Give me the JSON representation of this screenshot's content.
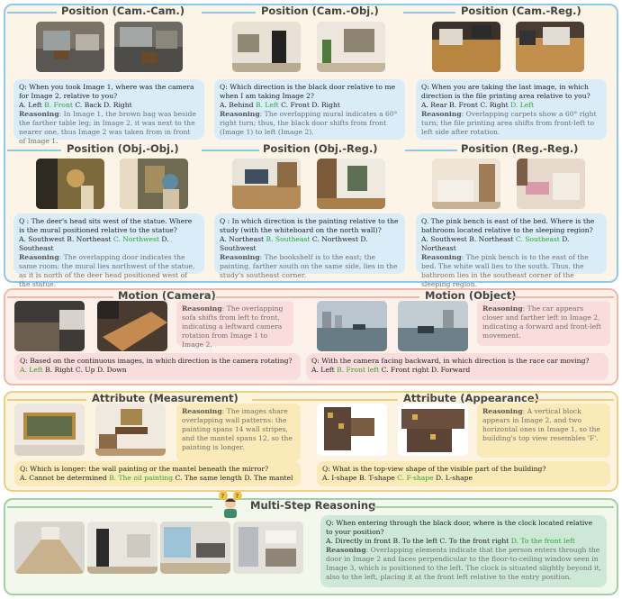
{
  "sections": {
    "position_pairs": {
      "colors": {
        "border": "#8ec9ea",
        "card": "#d9ecf8"
      }
    },
    "motion": {
      "colors": {
        "border": "#f0b8ad",
        "card": "#f9dcdc"
      }
    },
    "attribute": {
      "colors": {
        "border": "#f1cf82",
        "card": "#f9eab7"
      }
    },
    "multistep": {
      "colors": {
        "border": "#9fd2a4",
        "card": "#cde8d7"
      }
    }
  },
  "answer_color": "#2ca42c",
  "reasoning_label": "Reasoning",
  "position": {
    "cam_cam": {
      "title": "Position (Cam.-Cam.)",
      "question": "Q: When you took Image 1, where was the camera for Image 2, relative to you?",
      "opt_a": "A. Left ",
      "opt_b": "B. Front",
      "opt_rest": " C. Back  D. Right",
      "reasoning": "In Image 1, the brown bag was beside the farther table leg; in Image 2, it was next to the nearer one, thus Image 2 was taken from in front of Image 1."
    },
    "cam_obj": {
      "title": "Position (Cam.-Obj.)",
      "question": "Q: Which direction is the black door relative to me when I am taking Image 2?",
      "opt_a": "A. Behind ",
      "opt_b": "B. Left",
      "opt_rest": " C. Front  D. Right",
      "reasoning": "The overlapping mural indicates a 60° right turn; thus, the black door shifts from front (Image 1) to left (Image 2)."
    },
    "cam_reg": {
      "title": "Position (Cam.-Reg.)",
      "question": "Q: When you are taking the last image, in which direction is the file printing area relative to you?",
      "opt_pre": "A. Rear  B. Front  C. Right  ",
      "opt_d": "D. Left",
      "reasoning": "Overlapping carpets show a 60° right turn; the file printing area shifts from front-left to left side after rotation."
    },
    "obj_obj": {
      "title": "Position (Obj.-Obj.)",
      "question": "Q : The deer's head sits west of the statue. Where is the mural positioned relative to the statue?",
      "opt_pre": "A. Southwest  B. Northeast  ",
      "opt_c": "C. Northwest",
      "opt_rest": "  D. Southeast",
      "reasoning": "The overlapping door indicates the same room; the mural lies northwest of the statue, as it is north of the deer head positioned west of the statue."
    },
    "obj_reg": {
      "title": "Position (Obj.-Reg.)",
      "question": "Q : In which direction is the painting relative to the study (with the whiteboard on the north wall)?",
      "opt_pre": "A. Northeast  ",
      "opt_b": "B. Southeast",
      "opt_rest": "  C. Northwest  D. Southwest",
      "reasoning": "The bookshelf is to the east; the painting, farther south on the same side, lies in the study's southeast corner."
    },
    "reg_reg": {
      "title": "Position (Reg.-Reg.)",
      "question": "Q. The pink bench is east of the bed. Where is the bathroom located relative to the sleeping region?",
      "opt_pre": "A. Southwest  B. Northeast  ",
      "opt_c": "C. Southeast",
      "opt_rest": "  D. Northeast",
      "reasoning": "The pink bench is to the east of the bed. The white wall lies to the south. Thus, the bathroom lies in the southeast corner of the sleeping region."
    }
  },
  "motion": {
    "camera": {
      "title": "Motion (Camera)",
      "reasoning": "The overlapping sofa shifts from left to front, indicating a leftward camera rotation from Image 1 to Image 2.",
      "question": "Q: Based on the continuous images, in which direction is the camera rotating?",
      "opt_a": "A. Left",
      "opt_rest": "  B. Right  C. Up  D. Down"
    },
    "object": {
      "title": "Motion (Object)",
      "reasoning": "The car appears closer and farther left in Image 2, indicating a forward and front-left movement.",
      "question": "Q: With the camera facing backward, in which direction is the race car moving?",
      "opt_pre": "A. Left  ",
      "opt_b": "B. Front left",
      "opt_rest": "  C. Front right  D. Forward"
    }
  },
  "attribute": {
    "measurement": {
      "title": "Attribute (Measurement)",
      "reasoning": "The images share overlapping wall patterns: the painting spans 14 wall stripes, and the mantel spans 12, so the painting is longer.",
      "question": "Q: Which is longer: the wall painting or the mantel beneath the mirror?",
      "opt_pre": "A. Cannot be determined  ",
      "opt_b": "B. The oil painting",
      "opt_rest": "  C. The same length  D. The mantel"
    },
    "appearance": {
      "title": "Attribute (Appearance)",
      "reasoning": "A vertical block appears in Image 2, and two horizontal ones in Image 1, so the building's top view resembles 'F'.",
      "question": "Q: What is the top-view shape of the visible part of the building?",
      "opt_pre": "A. I-shape  B. T-shape  ",
      "opt_c": "C. F-shape",
      "opt_rest": "  D. L-shape"
    }
  },
  "multistep": {
    "title": "Multi-Step Reasoning",
    "question": "Q: When entering through the black door, where is the clock located relative to your position?",
    "opt_pre": "A. Directly in front   B. To the left   C. To the front right   ",
    "opt_d": "D. To the front left",
    "reasoning": "Overlapping elements indicate that the person enters through the door in Image 2 and faces perpendicular to the floor-to-ceiling window seen in Image 3, which is positioned to the left. The clock is situated slightly beyond it, also to the left, placing it at the front left relative to the entry position."
  }
}
